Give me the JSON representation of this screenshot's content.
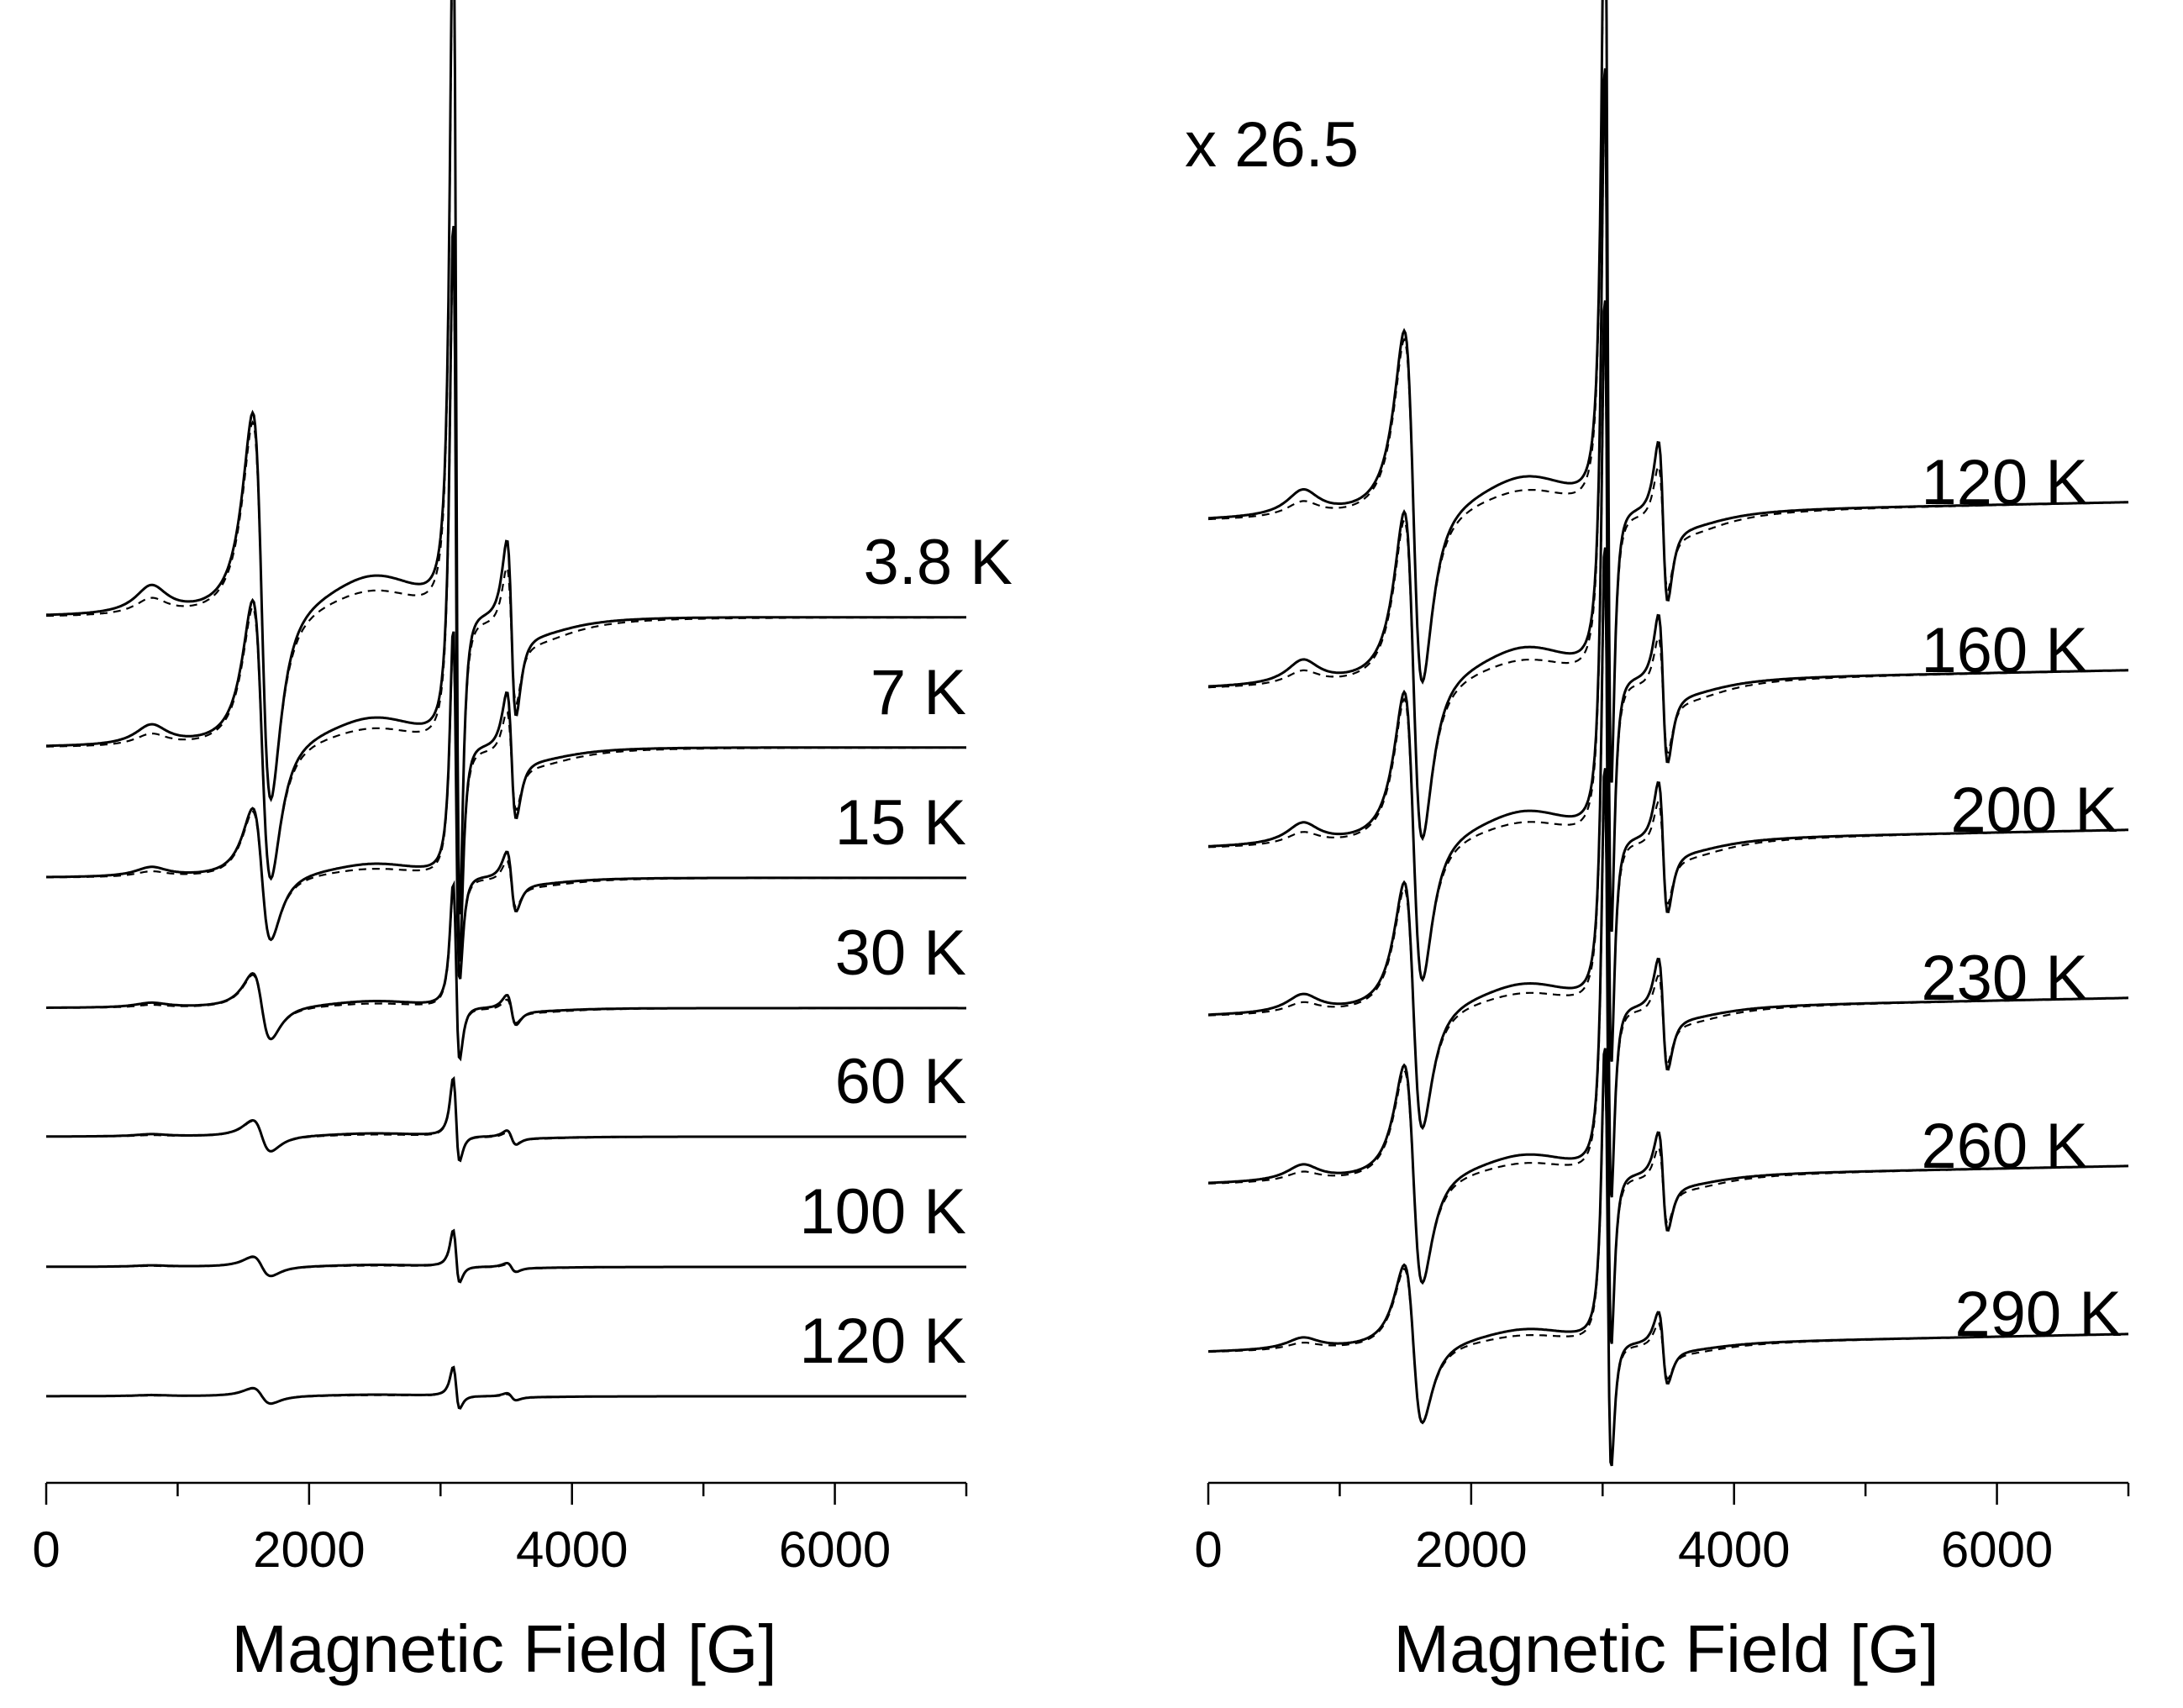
{
  "chart_data": [
    {
      "panel": "left",
      "type": "line",
      "xlabel": "Magnetic Field [G]",
      "xlim": [
        0,
        7000
      ],
      "xticks_major": [
        0,
        2000,
        4000,
        6000
      ],
      "xtick_labels": [
        "0",
        "2000",
        "4000",
        "6000"
      ],
      "xticks_minor": [
        1000,
        3000,
        5000,
        7000
      ],
      "ylabel": "",
      "line_styles": {
        "experiment": "solid",
        "simulation": "dashed"
      },
      "traces": [
        {
          "label": "3.8 K",
          "amplitude": 1.0
        },
        {
          "label": "7 K",
          "amplitude": 0.72
        },
        {
          "label": "15 K",
          "amplitude": 0.34
        },
        {
          "label": "30 K",
          "amplitude": 0.17
        },
        {
          "label": "60 K",
          "amplitude": 0.08
        },
        {
          "label": "100 K",
          "amplitude": 0.05
        },
        {
          "label": "120 K",
          "amplitude": 0.04
        }
      ]
    },
    {
      "panel": "right",
      "type": "line",
      "scale_note": "x 26.5",
      "xlabel": "Magnetic Field [G]",
      "xlim": [
        0,
        7000
      ],
      "xticks_major": [
        0,
        2000,
        4000,
        6000
      ],
      "xtick_labels": [
        "0",
        "2000",
        "4000",
        "6000"
      ],
      "xticks_minor": [
        1000,
        3000,
        5000,
        7000
      ],
      "ylabel": "",
      "line_styles": {
        "experiment": "solid",
        "simulation": "dashed"
      },
      "traces": [
        {
          "label": "120 K",
          "amplitude": 1.0
        },
        {
          "label": "160 K",
          "amplitude": 0.93
        },
        {
          "label": "200 K",
          "amplitude": 0.82
        },
        {
          "label": "230 K",
          "amplitude": 0.7
        },
        {
          "label": "260 K",
          "amplitude": 0.62
        },
        {
          "label": "290 K",
          "amplitude": 0.45
        }
      ]
    }
  ]
}
